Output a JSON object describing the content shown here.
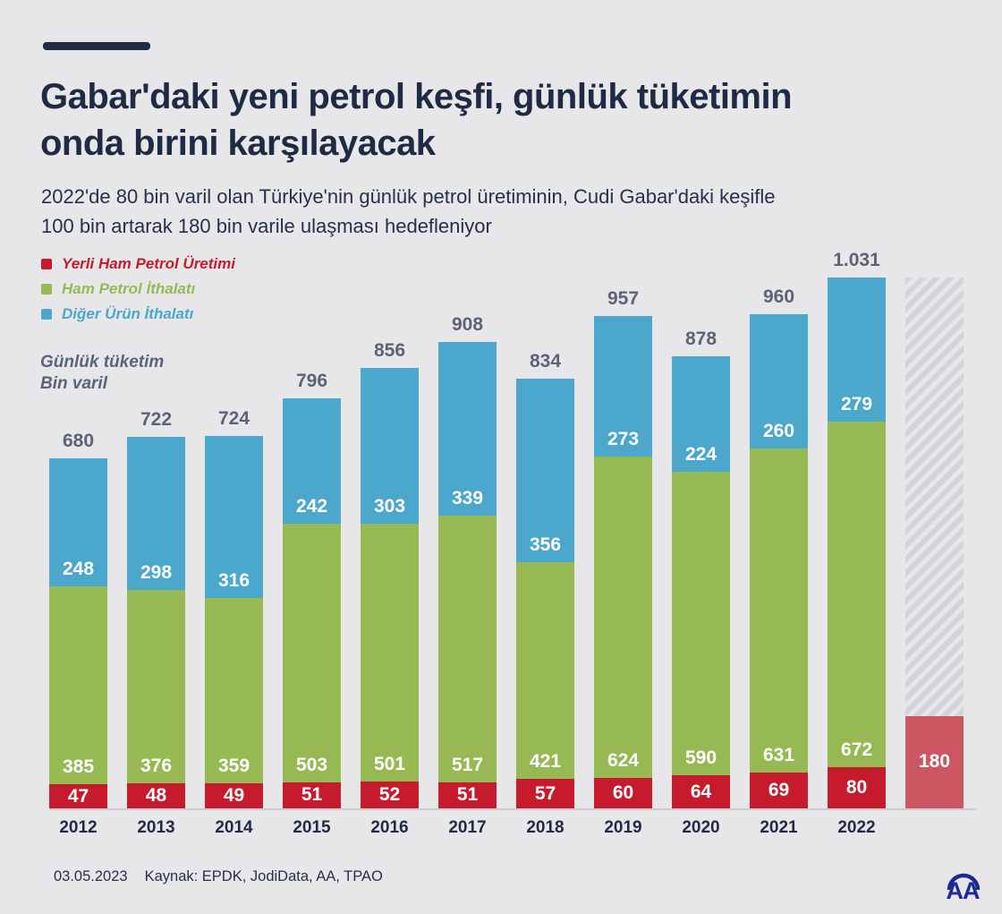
{
  "colors": {
    "background": "#e7e7e9",
    "navy": "#1f2a44",
    "muted_label": "#5c6377",
    "baseline": "#cbccd0",
    "logo_blue": "#1b2a96"
  },
  "header": {
    "title_line1": "Gabar'daki yeni petrol keşfi, günlük tüketimin",
    "title_line2": "onda birini karşılayacak",
    "subtitle_line1": "2022'de 80 bin varil olan Türkiye'nin günlük petrol üretiminin, Cudi Gabar'daki keşifle",
    "subtitle_line2": "100 bin artarak 180 bin varile ulaşması hedefleniyor"
  },
  "legend": {
    "items": [
      {
        "label": "Yerli Ham Petrol Üretimi",
        "color": "#c51b2c"
      },
      {
        "label": "Ham Petrol İthalatı",
        "color": "#97b954"
      },
      {
        "label": "Diğer Ürün İthalatı",
        "color": "#4ba7cb"
      }
    ]
  },
  "axis_label": {
    "line1": "Günlük tüketim",
    "line2": "Bin varil"
  },
  "chart_data": {
    "type": "bar",
    "stacked": true,
    "title": "Gabar'daki yeni petrol keşfi, günlük tüketimin onda birini karşılayacak",
    "ylabel": "Günlük tüketim, Bin varil",
    "xlabel": "",
    "ylim": [
      0,
      1031
    ],
    "grid": false,
    "legend_position": "top-left",
    "categories": [
      "2012",
      "2013",
      "2014",
      "2015",
      "2016",
      "2017",
      "2018",
      "2019",
      "2020",
      "2021",
      "2022"
    ],
    "series": [
      {
        "name": "Yerli Ham Petrol Üretimi",
        "color": "#c51b2c",
        "values": [
          47,
          48,
          49,
          51,
          52,
          51,
          57,
          60,
          64,
          69,
          80
        ]
      },
      {
        "name": "Ham Petrol İthalatı",
        "color": "#97b954",
        "values": [
          385,
          376,
          359,
          503,
          501,
          517,
          421,
          624,
          590,
          631,
          672
        ]
      },
      {
        "name": "Diğer Ürün İthalatı",
        "color": "#4ba7cb",
        "values": [
          248,
          298,
          316,
          242,
          303,
          339,
          356,
          273,
          224,
          260,
          279
        ]
      }
    ],
    "totals": [
      "680",
      "722",
      "724",
      "796",
      "856",
      "908",
      "834",
      "957",
      "878",
      "960",
      "1.031"
    ],
    "target_bar": {
      "label": "180",
      "value": 180,
      "hatch_top_value": 1031,
      "color": "#cd5663",
      "category_label": ""
    }
  },
  "footer": {
    "date": "03.05.2023",
    "source": "Kaynak: EPDK, JodiData, AA, TPAO"
  },
  "logo": {
    "text": "AA"
  }
}
